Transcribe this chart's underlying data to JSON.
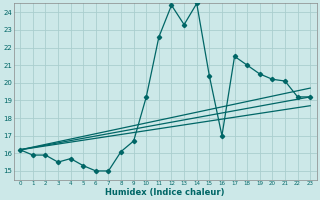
{
  "xlabel": "Humidex (Indice chaleur)",
  "xlim": [
    -0.5,
    23.5
  ],
  "ylim": [
    14.5,
    24.5
  ],
  "yticks": [
    15,
    16,
    17,
    18,
    19,
    20,
    21,
    22,
    23,
    24
  ],
  "xticks": [
    0,
    1,
    2,
    3,
    4,
    5,
    6,
    7,
    8,
    9,
    10,
    11,
    12,
    13,
    14,
    15,
    16,
    17,
    18,
    19,
    20,
    21,
    22,
    23
  ],
  "bg_color": "#cce8e8",
  "grid_color": "#aacece",
  "line_color": "#006666",
  "main_x": [
    0,
    1,
    2,
    3,
    4,
    5,
    6,
    7,
    8,
    9,
    10,
    11,
    12,
    13,
    14,
    15,
    16,
    17,
    18,
    19,
    20,
    21,
    22,
    23
  ],
  "main_y": [
    16.2,
    15.9,
    15.9,
    15.5,
    15.7,
    15.3,
    15.0,
    15.0,
    16.1,
    16.7,
    19.2,
    22.6,
    24.4,
    23.3,
    24.5,
    20.4,
    17.0,
    21.5,
    21.0,
    20.5,
    20.2,
    20.1,
    19.2,
    19.2
  ],
  "line1_x": [
    0,
    23
  ],
  "line1_y": [
    16.2,
    19.2
  ],
  "line2_x": [
    0,
    23
  ],
  "line2_y": [
    16.2,
    18.7
  ],
  "line3_x": [
    0,
    23
  ],
  "line3_y": [
    16.2,
    19.7
  ]
}
